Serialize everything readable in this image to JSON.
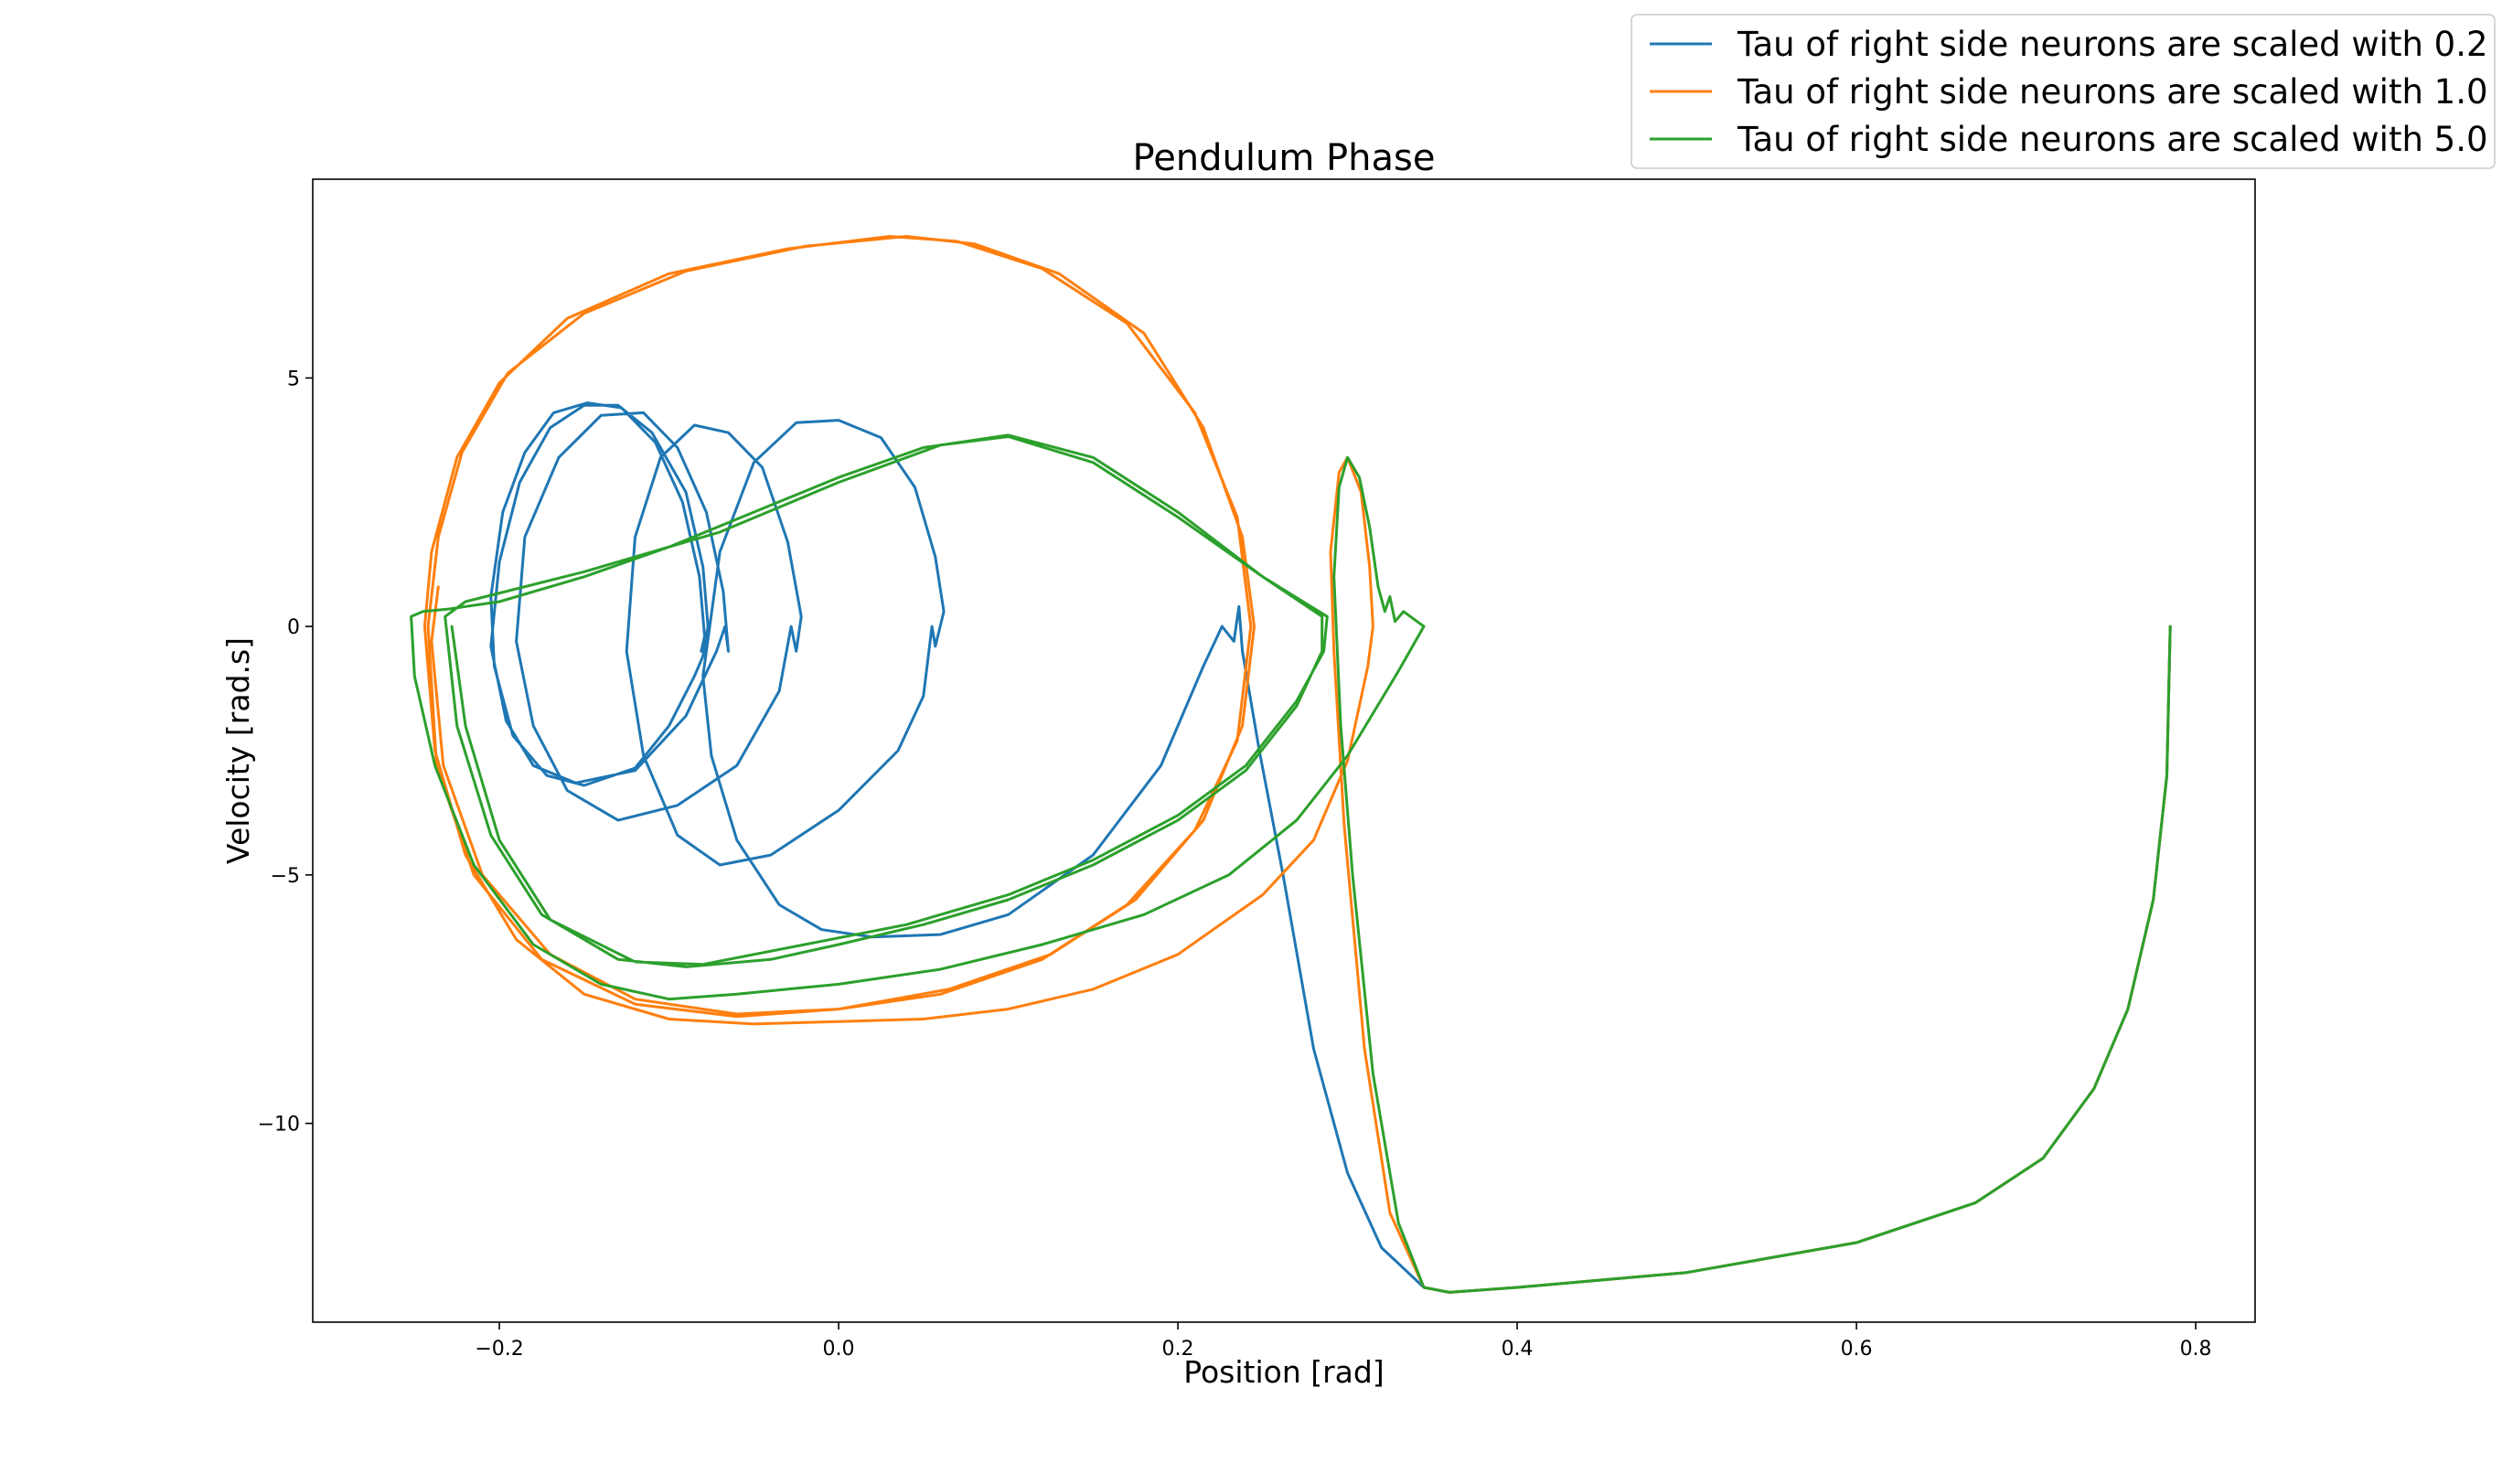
{
  "chart_data": {
    "type": "line",
    "title": "Pendulum Phase",
    "xlabel": "Position [rad]",
    "ylabel": "Velocity [rad.s]",
    "xlim": [
      -0.31,
      0.835
    ],
    "ylim": [
      -14.0,
      9.0
    ],
    "xticks": [
      -0.2,
      0.0,
      0.2,
      0.4,
      0.6,
      0.8
    ],
    "xtick_labels": [
      "−0.2",
      "0.0",
      "0.2",
      "0.4",
      "0.6",
      "0.8"
    ],
    "yticks": [
      5,
      0,
      -5,
      -10
    ],
    "ytick_labels": [
      "5",
      "0",
      "−5",
      "−10"
    ],
    "grid": false,
    "legend_position": "top-right (outside plot)",
    "series": [
      {
        "name": "Tau of right side neurons are scaled with 0.2",
        "color": "#1f77b4",
        "points": [
          [
            0.785,
            0.0
          ],
          [
            0.783,
            -3.0
          ],
          [
            0.775,
            -5.5
          ],
          [
            0.76,
            -7.7
          ],
          [
            0.74,
            -9.3
          ],
          [
            0.71,
            -10.7
          ],
          [
            0.67,
            -11.6
          ],
          [
            0.6,
            -12.4
          ],
          [
            0.5,
            -13.0
          ],
          [
            0.4,
            -13.3
          ],
          [
            0.36,
            -13.4
          ],
          [
            0.345,
            -13.3
          ],
          [
            0.32,
            -12.5
          ],
          [
            0.3,
            -11.0
          ],
          [
            0.28,
            -8.5
          ],
          [
            0.262,
            -5.0
          ],
          [
            0.248,
            -2.5
          ],
          [
            0.238,
            -0.5
          ],
          [
            0.236,
            0.4
          ],
          [
            0.233,
            -0.3
          ],
          [
            0.226,
            0.0
          ],
          [
            0.215,
            -0.8
          ],
          [
            0.19,
            -2.8
          ],
          [
            0.15,
            -4.6
          ],
          [
            0.1,
            -5.8
          ],
          [
            0.06,
            -6.2
          ],
          [
            0.02,
            -6.25
          ],
          [
            -0.01,
            -6.1
          ],
          [
            -0.035,
            -5.6
          ],
          [
            -0.06,
            -4.3
          ],
          [
            -0.075,
            -2.6
          ],
          [
            -0.08,
            -1.0
          ],
          [
            -0.07,
            1.5
          ],
          [
            -0.05,
            3.3
          ],
          [
            -0.025,
            4.1
          ],
          [
            0.0,
            4.15
          ],
          [
            0.025,
            3.8
          ],
          [
            0.045,
            2.8
          ],
          [
            0.057,
            1.4
          ],
          [
            0.062,
            0.3
          ],
          [
            0.057,
            -0.4
          ],
          [
            0.055,
            0.0
          ],
          [
            0.05,
            -1.4
          ],
          [
            0.035,
            -2.5
          ],
          [
            0.0,
            -3.7
          ],
          [
            -0.04,
            -4.6
          ],
          [
            -0.07,
            -4.8
          ],
          [
            -0.095,
            -4.2
          ],
          [
            -0.115,
            -2.6
          ],
          [
            -0.125,
            -0.5
          ],
          [
            -0.12,
            1.8
          ],
          [
            -0.105,
            3.4
          ],
          [
            -0.085,
            4.05
          ],
          [
            -0.065,
            3.9
          ],
          [
            -0.045,
            3.2
          ],
          [
            -0.03,
            1.7
          ],
          [
            -0.022,
            0.2
          ],
          [
            -0.025,
            -0.5
          ],
          [
            -0.028,
            0.0
          ],
          [
            -0.035,
            -1.3
          ],
          [
            -0.06,
            -2.8
          ],
          [
            -0.095,
            -3.6
          ],
          [
            -0.13,
            -3.9
          ],
          [
            -0.16,
            -3.3
          ],
          [
            -0.18,
            -2.0
          ],
          [
            -0.19,
            -0.3
          ],
          [
            -0.185,
            1.8
          ],
          [
            -0.165,
            3.4
          ],
          [
            -0.14,
            4.25
          ],
          [
            -0.115,
            4.3
          ],
          [
            -0.095,
            3.6
          ],
          [
            -0.078,
            2.3
          ],
          [
            -0.068,
            0.7
          ],
          [
            -0.065,
            -0.5
          ],
          [
            -0.067,
            0.0
          ],
          [
            -0.072,
            -0.5
          ],
          [
            -0.09,
            -1.8
          ],
          [
            -0.12,
            -2.9
          ],
          [
            -0.155,
            -3.15
          ],
          [
            -0.18,
            -2.8
          ],
          [
            -0.196,
            -1.9
          ],
          [
            -0.205,
            -0.4
          ],
          [
            -0.2,
            1.3
          ],
          [
            -0.188,
            2.9
          ],
          [
            -0.17,
            4.0
          ],
          [
            -0.15,
            4.45
          ],
          [
            -0.13,
            4.45
          ],
          [
            -0.11,
            3.9
          ],
          [
            -0.09,
            2.7
          ],
          [
            -0.08,
            1.2
          ],
          [
            -0.077,
            0.0
          ],
          [
            -0.08,
            -0.6
          ],
          [
            -0.085,
            -1.0
          ],
          [
            -0.1,
            -2.0
          ],
          [
            -0.12,
            -2.85
          ],
          [
            -0.15,
            -3.2
          ],
          [
            -0.172,
            -3.0
          ],
          [
            -0.192,
            -2.2
          ],
          [
            -0.203,
            -0.8
          ],
          [
            -0.205,
            0.6
          ],
          [
            -0.198,
            2.3
          ],
          [
            -0.185,
            3.5
          ],
          [
            -0.168,
            4.3
          ],
          [
            -0.148,
            4.5
          ],
          [
            -0.128,
            4.4
          ],
          [
            -0.108,
            3.7
          ],
          [
            -0.092,
            2.5
          ],
          [
            -0.082,
            1.0
          ],
          [
            -0.079,
            -0.2
          ],
          [
            -0.081,
            -0.5
          ]
        ]
      },
      {
        "name": "Tau of right side neurons are scaled with 1.0",
        "color": "#ff7f0e",
        "points": [
          [
            0.785,
            0.0
          ],
          [
            0.783,
            -3.0
          ],
          [
            0.775,
            -5.5
          ],
          [
            0.76,
            -7.7
          ],
          [
            0.74,
            -9.3
          ],
          [
            0.71,
            -10.7
          ],
          [
            0.67,
            -11.6
          ],
          [
            0.6,
            -12.4
          ],
          [
            0.5,
            -13.0
          ],
          [
            0.4,
            -13.3
          ],
          [
            0.36,
            -13.4
          ],
          [
            0.345,
            -13.3
          ],
          [
            0.325,
            -11.8
          ],
          [
            0.31,
            -8.5
          ],
          [
            0.298,
            -4.0
          ],
          [
            0.292,
            -0.5
          ],
          [
            0.29,
            1.5
          ],
          [
            0.295,
            3.1
          ],
          [
            0.3,
            3.4
          ],
          [
            0.308,
            2.7
          ],
          [
            0.313,
            1.2
          ],
          [
            0.315,
            0.0
          ],
          [
            0.312,
            -0.8
          ],
          [
            0.3,
            -2.7
          ],
          [
            0.28,
            -4.3
          ],
          [
            0.25,
            -5.4
          ],
          [
            0.2,
            -6.6
          ],
          [
            0.15,
            -7.3
          ],
          [
            0.1,
            -7.7
          ],
          [
            0.05,
            -7.9
          ],
          [
            0.0,
            -7.95
          ],
          [
            -0.05,
            -8.0
          ],
          [
            -0.1,
            -7.9
          ],
          [
            -0.15,
            -7.4
          ],
          [
            -0.19,
            -6.3
          ],
          [
            -0.22,
            -4.6
          ],
          [
            -0.238,
            -2.5
          ],
          [
            -0.244,
            0.0
          ],
          [
            -0.24,
            1.5
          ],
          [
            -0.225,
            3.4
          ],
          [
            -0.2,
            4.9
          ],
          [
            -0.16,
            6.2
          ],
          [
            -0.1,
            7.1
          ],
          [
            -0.03,
            7.6
          ],
          [
            0.03,
            7.85
          ],
          [
            0.07,
            7.75
          ],
          [
            0.12,
            7.2
          ],
          [
            0.17,
            6.1
          ],
          [
            0.21,
            4.3
          ],
          [
            0.235,
            2.2
          ],
          [
            0.243,
            0.0
          ],
          [
            0.235,
            -2.3
          ],
          [
            0.21,
            -4.1
          ],
          [
            0.17,
            -5.6
          ],
          [
            0.12,
            -6.7
          ],
          [
            0.06,
            -7.4
          ],
          [
            0.0,
            -7.7
          ],
          [
            -0.06,
            -7.85
          ],
          [
            -0.12,
            -7.6
          ],
          [
            -0.175,
            -6.7
          ],
          [
            -0.215,
            -5.0
          ],
          [
            -0.237,
            -2.8
          ],
          [
            -0.242,
            0.0
          ],
          [
            -0.236,
            1.8
          ],
          [
            -0.222,
            3.5
          ],
          [
            -0.195,
            5.1
          ],
          [
            -0.15,
            6.3
          ],
          [
            -0.09,
            7.15
          ],
          [
            -0.02,
            7.65
          ],
          [
            0.04,
            7.85
          ],
          [
            0.08,
            7.7
          ],
          [
            0.13,
            7.1
          ],
          [
            0.18,
            5.9
          ],
          [
            0.215,
            4.0
          ],
          [
            0.238,
            1.8
          ],
          [
            0.245,
            0.0
          ],
          [
            0.238,
            -2.0
          ],
          [
            0.215,
            -3.9
          ],
          [
            0.175,
            -5.5
          ],
          [
            0.125,
            -6.6
          ],
          [
            0.065,
            -7.3
          ],
          [
            0.0,
            -7.7
          ],
          [
            -0.06,
            -7.8
          ],
          [
            -0.12,
            -7.5
          ],
          [
            -0.17,
            -6.6
          ],
          [
            -0.21,
            -5.0
          ],
          [
            -0.233,
            -2.8
          ],
          [
            -0.24,
            -0.3
          ],
          [
            -0.236,
            0.8
          ]
        ]
      },
      {
        "name": "Tau of right side neurons are scaled with 5.0",
        "color": "#2ca02c",
        "points": [
          [
            0.785,
            0.0
          ],
          [
            0.783,
            -3.0
          ],
          [
            0.775,
            -5.5
          ],
          [
            0.76,
            -7.7
          ],
          [
            0.74,
            -9.3
          ],
          [
            0.71,
            -10.7
          ],
          [
            0.67,
            -11.6
          ],
          [
            0.6,
            -12.4
          ],
          [
            0.5,
            -13.0
          ],
          [
            0.4,
            -13.3
          ],
          [
            0.36,
            -13.4
          ],
          [
            0.345,
            -13.3
          ],
          [
            0.33,
            -12.0
          ],
          [
            0.315,
            -9.0
          ],
          [
            0.303,
            -5.0
          ],
          [
            0.296,
            -2.0
          ],
          [
            0.292,
            1.0
          ],
          [
            0.295,
            2.8
          ],
          [
            0.3,
            3.4
          ],
          [
            0.307,
            3.0
          ],
          [
            0.313,
            2.0
          ],
          [
            0.318,
            0.8
          ],
          [
            0.322,
            0.3
          ],
          [
            0.325,
            0.6
          ],
          [
            0.328,
            0.1
          ],
          [
            0.333,
            0.3
          ],
          [
            0.345,
            0.0
          ],
          [
            0.33,
            -0.9
          ],
          [
            0.3,
            -2.6
          ],
          [
            0.27,
            -3.9
          ],
          [
            0.23,
            -5.0
          ],
          [
            0.18,
            -5.8
          ],
          [
            0.12,
            -6.4
          ],
          [
            0.06,
            -6.9
          ],
          [
            0.0,
            -7.2
          ],
          [
            -0.06,
            -7.4
          ],
          [
            -0.1,
            -7.5
          ],
          [
            -0.14,
            -7.2
          ],
          [
            -0.18,
            -6.4
          ],
          [
            -0.215,
            -4.8
          ],
          [
            -0.238,
            -2.8
          ],
          [
            -0.25,
            -1.0
          ],
          [
            -0.252,
            0.2
          ],
          [
            -0.245,
            0.3
          ],
          [
            -0.23,
            0.35
          ],
          [
            -0.2,
            0.5
          ],
          [
            -0.15,
            1.0
          ],
          [
            -0.1,
            1.6
          ],
          [
            -0.05,
            2.3
          ],
          [
            0.0,
            3.0
          ],
          [
            0.05,
            3.6
          ],
          [
            0.1,
            3.85
          ],
          [
            0.15,
            3.4
          ],
          [
            0.2,
            2.3
          ],
          [
            0.25,
            1.0
          ],
          [
            0.285,
            0.2
          ],
          [
            0.285,
            -0.5
          ],
          [
            0.27,
            -1.6
          ],
          [
            0.24,
            -2.9
          ],
          [
            0.2,
            -3.9
          ],
          [
            0.15,
            -4.8
          ],
          [
            0.1,
            -5.5
          ],
          [
            0.05,
            -6.0
          ],
          [
            0.0,
            -6.4
          ],
          [
            -0.04,
            -6.7
          ],
          [
            -0.09,
            -6.85
          ],
          [
            -0.13,
            -6.7
          ],
          [
            -0.175,
            -5.8
          ],
          [
            -0.205,
            -4.2
          ],
          [
            -0.225,
            -2.0
          ],
          [
            -0.232,
            0.2
          ],
          [
            -0.22,
            0.5
          ],
          [
            -0.15,
            1.1
          ],
          [
            -0.07,
            1.9
          ],
          [
            0.0,
            2.9
          ],
          [
            0.06,
            3.65
          ],
          [
            0.1,
            3.82
          ],
          [
            0.15,
            3.3
          ],
          [
            0.2,
            2.2
          ],
          [
            0.25,
            1.0
          ],
          [
            0.288,
            0.2
          ],
          [
            0.286,
            -0.5
          ],
          [
            0.27,
            -1.5
          ],
          [
            0.24,
            -2.8
          ],
          [
            0.2,
            -3.8
          ],
          [
            0.15,
            -4.7
          ],
          [
            0.1,
            -5.4
          ],
          [
            0.04,
            -6.0
          ],
          [
            -0.02,
            -6.4
          ],
          [
            -0.08,
            -6.8
          ],
          [
            -0.12,
            -6.75
          ],
          [
            -0.17,
            -5.9
          ],
          [
            -0.2,
            -4.3
          ],
          [
            -0.22,
            -2.0
          ],
          [
            -0.228,
            0.0
          ]
        ]
      }
    ]
  }
}
